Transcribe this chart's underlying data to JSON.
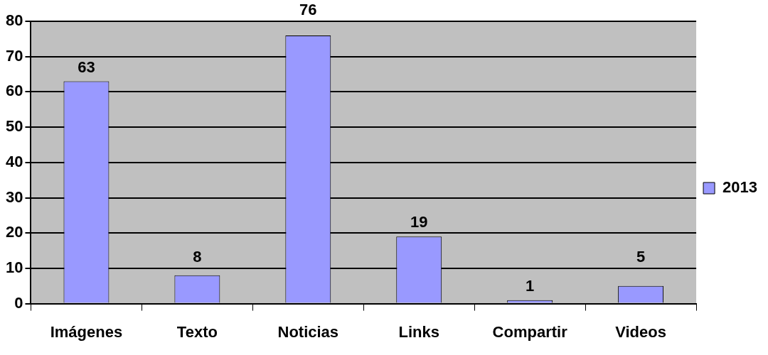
{
  "chart_data": {
    "type": "bar",
    "categories": [
      "Imágenes",
      "Texto",
      "Noticias",
      "Links",
      "Compartir",
      "Videos"
    ],
    "series": [
      {
        "name": "2013",
        "color": "#9999ff",
        "values": [
          63,
          8,
          76,
          19,
          1,
          5
        ]
      }
    ],
    "ylim": [
      0,
      80
    ],
    "yticks": [
      0,
      10,
      20,
      30,
      40,
      50,
      60,
      70,
      80
    ],
    "grid": "y",
    "legend": "right",
    "data_labels": true
  }
}
